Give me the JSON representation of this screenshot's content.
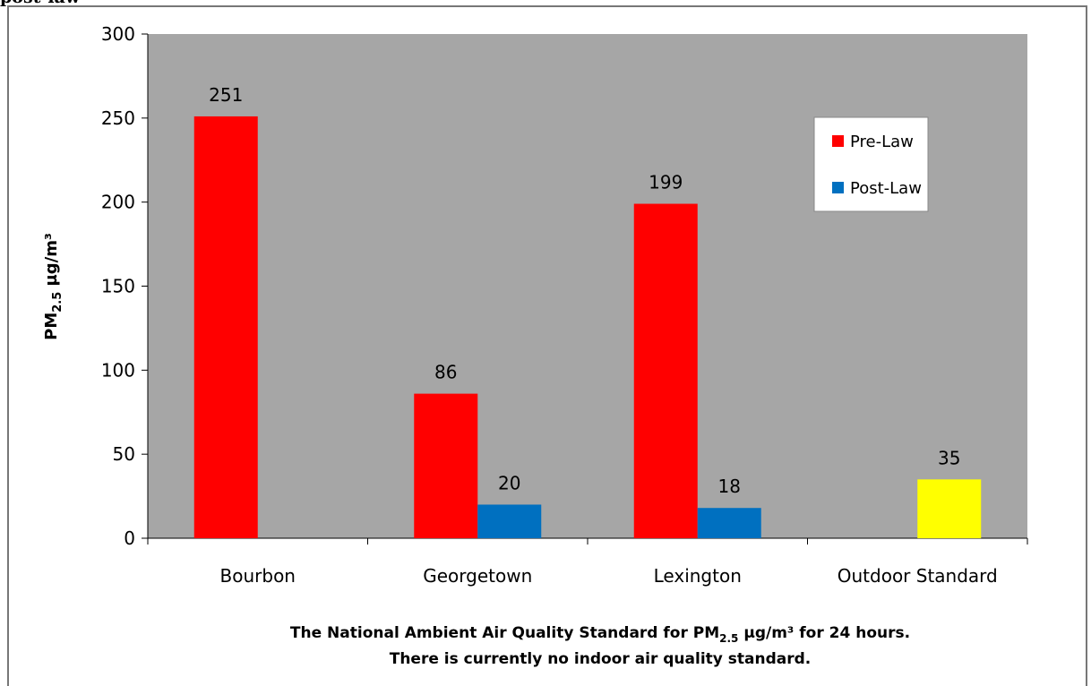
{
  "cut_text": "post-law",
  "chart_data": {
    "type": "bar",
    "categories": [
      "Bourbon",
      "Georgetown",
      "Lexington",
      "Outdoor Standard"
    ],
    "series": [
      {
        "name": "Pre-Law",
        "color": "#ff0000",
        "values": [
          251,
          86,
          199,
          null
        ]
      },
      {
        "name": "Post-Law",
        "color": "#0070c0",
        "values": [
          null,
          20,
          18,
          null
        ]
      },
      {
        "name": "",
        "color": "#ffff00",
        "values": [
          null,
          null,
          null,
          35
        ]
      }
    ],
    "data_labels": [
      [
        "251",
        "86",
        "199",
        ""
      ],
      [
        "",
        "20",
        "18",
        ""
      ],
      [
        "",
        "",
        "",
        "35"
      ]
    ],
    "ylim": [
      0,
      300
    ],
    "yticks": [
      0,
      50,
      100,
      150,
      200,
      250,
      300
    ],
    "ylabel": {
      "main": "PM",
      "sub": "2.5",
      "unit": " µg/m³"
    },
    "caption": {
      "line1_pre": "The National Ambient Air Quality Standard for PM",
      "line1_sub": "2.5",
      "line1_post": " µg/m³ for 24 hours.",
      "line2": "There is currently no indoor air quality standard."
    },
    "plot_background": "#a6a6a6",
    "legend_placement": "top-right",
    "grid": false
  }
}
